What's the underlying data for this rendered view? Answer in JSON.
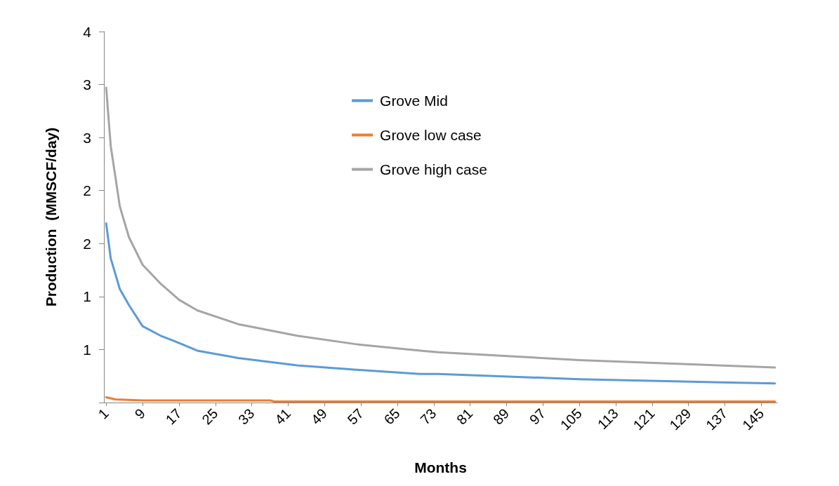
{
  "chart_data": {
    "type": "line",
    "xlabel": "Months",
    "ylabel": "Production  (MMSCF/day)",
    "xlim": [
      0.5,
      148.5
    ],
    "xticks": [
      1,
      9,
      17,
      25,
      33,
      41,
      49,
      57,
      65,
      73,
      81,
      89,
      97,
      105,
      113,
      121,
      129,
      137,
      145
    ],
    "ylim": [
      0,
      3.5
    ],
    "yticks": [
      {
        "value": 0,
        "label": null
      },
      {
        "value": 0.5,
        "label": "1"
      },
      {
        "value": 1,
        "label": "1"
      },
      {
        "value": 1.5,
        "label": "2"
      },
      {
        "value": 2,
        "label": "2"
      },
      {
        "value": 2.5,
        "label": "3"
      },
      {
        "value": 3,
        "label": "3"
      },
      {
        "value": 3.5,
        "label": "4"
      }
    ],
    "grid": false,
    "legend": "top",
    "marker": "none",
    "line_style": "solid",
    "series": [
      {
        "name": "Grove Mid",
        "color": "#5b9bd5",
        "x": [
          1,
          2,
          4,
          6,
          9,
          13,
          16,
          21,
          30,
          43,
          56,
          70,
          74,
          105,
          148
        ],
        "values": [
          1.69,
          1.36,
          1.07,
          0.92,
          0.72,
          0.63,
          0.58,
          0.49,
          0.42,
          0.35,
          0.31,
          0.27,
          0.27,
          0.22,
          0.18
        ]
      },
      {
        "name": "Grove low case",
        "color": "#ed7d31",
        "x": [
          1,
          3,
          9,
          37,
          38,
          148
        ],
        "values": [
          0.05,
          0.03,
          0.02,
          0.02,
          0.01,
          0.01
        ]
      },
      {
        "name": "Grove high case",
        "color": "#a5a5a5",
        "x": [
          1,
          2,
          4,
          6,
          9,
          13,
          17,
          21,
          30,
          43,
          56,
          70,
          74,
          105,
          148
        ],
        "values": [
          2.97,
          2.42,
          1.85,
          1.56,
          1.3,
          1.12,
          0.97,
          0.87,
          0.74,
          0.63,
          0.55,
          0.49,
          0.475,
          0.4,
          0.33
        ]
      }
    ]
  }
}
